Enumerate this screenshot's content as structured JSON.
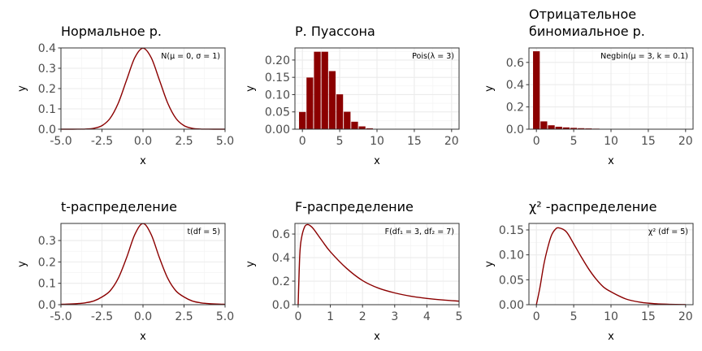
{
  "chart_data": [
    {
      "type": "line",
      "title": "Нормальное р.",
      "annotation": "N(μ = 0, σ = 1)",
      "xlabel": "x",
      "ylabel": "y",
      "xlim": [
        -5,
        5
      ],
      "ylim": [
        0,
        0.4
      ],
      "xticks": [
        -5,
        -2.5,
        0,
        2.5,
        5
      ],
      "xtick_labels": [
        "-5.0",
        "-2.5",
        "0.0",
        "2.5",
        "5.0"
      ],
      "yticks": [
        0,
        0.1,
        0.2,
        0.3,
        0.4
      ],
      "ytick_labels": [
        "0.0",
        "0.1",
        "0.2",
        "0.3",
        "0.4"
      ],
      "grid": true,
      "color": "#8b0000",
      "x": [
        -5,
        -4.5,
        -4,
        -3.5,
        -3,
        -2.5,
        -2,
        -1.5,
        -1,
        -0.5,
        0,
        0.5,
        1,
        1.5,
        2,
        2.5,
        3,
        3.5,
        4,
        4.5,
        5
      ],
      "y": [
        0,
        0,
        0.0001,
        0.0009,
        0.0044,
        0.0175,
        0.054,
        0.1295,
        0.242,
        0.3521,
        0.3989,
        0.3521,
        0.242,
        0.1295,
        0.054,
        0.0175,
        0.0044,
        0.0009,
        0.0001,
        0,
        0
      ]
    },
    {
      "type": "bar",
      "title": "Р. Пуассона",
      "annotation": "Pois(λ = 3)",
      "xlabel": "x",
      "ylabel": "y",
      "xlim": [
        -1,
        21
      ],
      "ylim": [
        0,
        0.235
      ],
      "xticks": [
        0,
        5,
        10,
        15,
        20
      ],
      "xtick_labels": [
        "0",
        "5",
        "10",
        "15",
        "20"
      ],
      "yticks": [
        0,
        0.05,
        0.1,
        0.15,
        0.2
      ],
      "ytick_labels": [
        "0.00",
        "0.05",
        "0.10",
        "0.15",
        "0.20"
      ],
      "grid": true,
      "color": "#8b0000",
      "x": [
        0,
        1,
        2,
        3,
        4,
        5,
        6,
        7,
        8,
        9,
        10
      ],
      "y": [
        0.0498,
        0.1494,
        0.224,
        0.224,
        0.168,
        0.1008,
        0.0504,
        0.0216,
        0.0081,
        0.0027,
        0.0008
      ]
    },
    {
      "type": "bar",
      "title": "Отрицательное\nбиномиальное р.",
      "annotation": "Negbin(μ = 3,  k = 0.1)",
      "xlabel": "x",
      "ylabel": "y",
      "xlim": [
        -1,
        21
      ],
      "ylim": [
        0,
        0.73
      ],
      "xticks": [
        0,
        5,
        10,
        15,
        20
      ],
      "xtick_labels": [
        "0",
        "5",
        "10",
        "15",
        "20"
      ],
      "yticks": [
        0,
        0.2,
        0.4,
        0.6
      ],
      "ytick_labels": [
        "0.0",
        "0.2",
        "0.4",
        "0.6"
      ],
      "grid": true,
      "color": "#8b0000",
      "x": [
        0,
        1,
        2,
        3,
        4,
        5,
        6,
        7,
        8
      ],
      "y": [
        0.7,
        0.07,
        0.035,
        0.022,
        0.016,
        0.012,
        0.009,
        0.007,
        0.005
      ]
    },
    {
      "type": "line",
      "title": "t-распределение",
      "annotation": "t(df = 5)",
      "xlabel": "x",
      "ylabel": "y",
      "xlim": [
        -5,
        5
      ],
      "ylim": [
        0,
        0.38
      ],
      "xticks": [
        -5,
        -2.5,
        0,
        2.5,
        5
      ],
      "xtick_labels": [
        "-5.0",
        "-2.5",
        "0.0",
        "2.5",
        "5.0"
      ],
      "yticks": [
        0,
        0.1,
        0.2,
        0.3
      ],
      "ytick_labels": [
        "0.0",
        "0.1",
        "0.2",
        "0.3"
      ],
      "grid": true,
      "color": "#8b0000",
      "x": [
        -5,
        -4.5,
        -4,
        -3.5,
        -3,
        -2.5,
        -2,
        -1.5,
        -1,
        -0.5,
        0,
        0.5,
        1,
        1.5,
        2,
        2.5,
        3,
        3.5,
        4,
        4.5,
        5
      ],
      "y": [
        0.0018,
        0.003,
        0.0051,
        0.009,
        0.0173,
        0.0361,
        0.0651,
        0.1245,
        0.2197,
        0.3279,
        0.3796,
        0.3279,
        0.2197,
        0.1245,
        0.0651,
        0.0361,
        0.0173,
        0.009,
        0.0051,
        0.003,
        0.0018
      ]
    },
    {
      "type": "line",
      "title": "F-распределение",
      "annotation": "F(df₁ = 3,  df₂ = 7)",
      "xlabel": "x",
      "ylabel": "y",
      "xlim": [
        -0.1,
        5
      ],
      "ylim": [
        0,
        0.69
      ],
      "xticks": [
        0,
        1,
        2,
        3,
        4,
        5
      ],
      "xtick_labels": [
        "0",
        "1",
        "2",
        "3",
        "4",
        "5"
      ],
      "yticks": [
        0,
        0.2,
        0.4,
        0.6
      ],
      "ytick_labels": [
        "0.0",
        "0.2",
        "0.4",
        "0.6"
      ],
      "grid": true,
      "color": "#8b0000",
      "x": [
        0,
        0.05,
        0.1,
        0.2,
        0.3,
        0.4,
        0.5,
        0.75,
        1,
        1.5,
        2,
        2.5,
        3,
        3.5,
        4,
        4.5,
        5
      ],
      "y": [
        0,
        0.42,
        0.56,
        0.66,
        0.68,
        0.665,
        0.635,
        0.54,
        0.45,
        0.31,
        0.205,
        0.14,
        0.1,
        0.072,
        0.053,
        0.04,
        0.03
      ]
    },
    {
      "type": "line",
      "title": "χ² -распределение",
      "annotation": "χ² (df = 5)",
      "xlabel": "x",
      "ylabel": "y",
      "xlim": [
        -1,
        21
      ],
      "ylim": [
        0,
        0.163
      ],
      "xticks": [
        0,
        5,
        10,
        15,
        20
      ],
      "xtick_labels": [
        "0",
        "5",
        "10",
        "15",
        "20"
      ],
      "yticks": [
        0,
        0.05,
        0.1,
        0.15
      ],
      "ytick_labels": [
        "0.00",
        "0.05",
        "0.10",
        "0.15"
      ],
      "grid": true,
      "color": "#8b0000",
      "x": [
        0,
        0.25,
        0.5,
        1,
        1.5,
        2,
        2.5,
        3,
        4,
        5,
        6,
        7,
        8,
        9,
        10,
        12,
        14,
        16,
        18,
        20
      ],
      "y": [
        0,
        0.0176,
        0.0366,
        0.0807,
        0.1133,
        0.1384,
        0.1506,
        0.1542,
        0.1465,
        0.1221,
        0.0962,
        0.0718,
        0.0514,
        0.0354,
        0.0259,
        0.0114,
        0.0048,
        0.0019,
        0.0007,
        0.0003
      ]
    }
  ]
}
